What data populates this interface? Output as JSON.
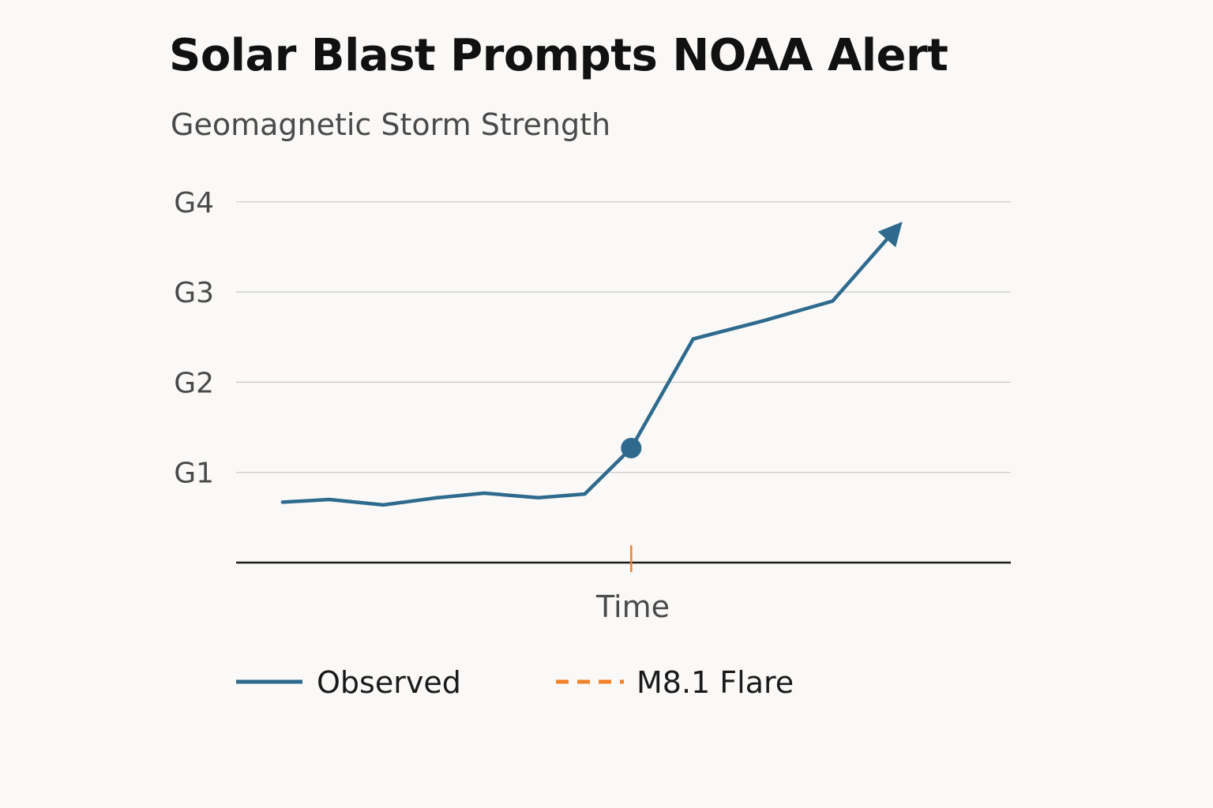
{
  "chart_data": {
    "type": "line",
    "title": "Solar Blast Prompts NOAA Alert",
    "subtitle": "Geomagnetic Storm Strength",
    "xlabel": "Time",
    "ylabel": "",
    "y_ticks": [
      {
        "label": "G1",
        "value": 1
      },
      {
        "label": "G2",
        "value": 2
      },
      {
        "label": "G3",
        "value": 3
      },
      {
        "label": "G4",
        "value": 4
      }
    ],
    "ylim": [
      0,
      4
    ],
    "xlim": [
      0,
      100
    ],
    "grid": true,
    "series": [
      {
        "name": "Observed",
        "color": "#2e6a8e",
        "x": [
          6,
          12,
          19,
          26,
          32,
          39,
          45,
          51,
          59,
          68,
          77,
          86
        ],
        "y": [
          0.67,
          0.7,
          0.64,
          0.72,
          0.77,
          0.72,
          0.76,
          1.27,
          2.48,
          2.68,
          2.9,
          3.78
        ],
        "highlight_index": 7,
        "ends_with_arrow": true
      }
    ],
    "event_marker": {
      "name": "M8.1 Flare",
      "x": 51,
      "color": "#f0832a",
      "style": "dashed"
    },
    "legend": [
      {
        "label": "Observed",
        "color": "#2e6a8e",
        "style": "solid"
      },
      {
        "label": "M8.1 Flare",
        "color": "#f0832a",
        "style": "dashed"
      }
    ],
    "legend_placement": "bottom-left"
  },
  "colors": {
    "background": "#faf9f7",
    "grid": "#c8c8c8",
    "axis": "#1a1a1a",
    "text": "#4a4a4a"
  }
}
